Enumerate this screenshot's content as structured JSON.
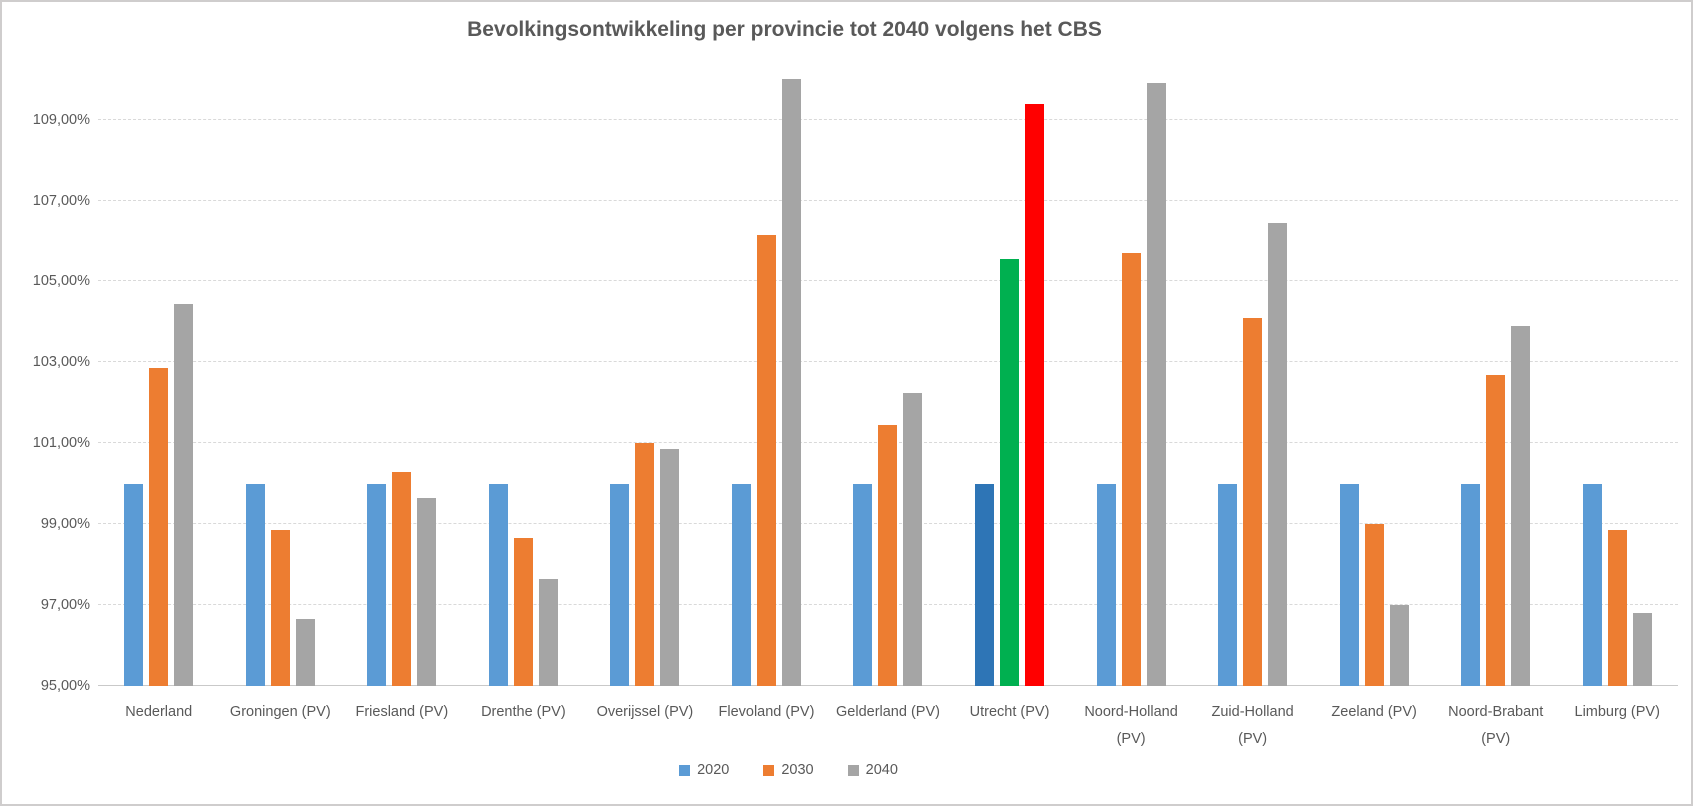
{
  "chart_title": "Bevolkingsontwikkeling per provincie tot 2040 volgens het CBS",
  "colors": {
    "text": "#595959",
    "gridline": "#d9d9d9",
    "border": "#cfcdcd",
    "background": "#ffffff"
  },
  "chart_data": {
    "type": "bar",
    "title": "Bevolkingsontwikkeling per provincie tot 2040 volgens het CBS",
    "categories": [
      "Nederland",
      "Groningen (PV)",
      "Friesland (PV)",
      "Drenthe (PV)",
      "Overijssel (PV)",
      "Flevoland (PV)",
      "Gelderland (PV)",
      "Utrecht (PV)",
      "Noord-Holland (PV)",
      "Zuid-Holland (PV)",
      "Zeeland (PV)",
      "Noord-Brabant (PV)",
      "Limburg (PV)"
    ],
    "two_line_categories": [
      "Noord-Holland (PV)",
      "Zuid-Holland (PV)",
      "Noord-Brabant (PV)"
    ],
    "series": [
      {
        "name": "2020",
        "color": "#5B9BD5",
        "values": [
          100,
          100,
          100,
          100,
          100,
          100,
          100,
          100,
          100,
          100,
          100,
          100,
          100
        ]
      },
      {
        "name": "2030",
        "color": "#ED7D31",
        "values": [
          102.85,
          98.85,
          100.3,
          98.65,
          101.0,
          106.15,
          101.45,
          105.55,
          105.7,
          104.1,
          99.0,
          102.7,
          98.85
        ]
      },
      {
        "name": "2040",
        "color": "#A5A5A5",
        "values": [
          104.45,
          96.65,
          99.65,
          97.65,
          100.85,
          110.0,
          102.25,
          109.4,
          109.9,
          106.45,
          97.0,
          103.9,
          96.8
        ]
      }
    ],
    "highlight": {
      "category": "Utrecht (PV)",
      "colors": {
        "2020": "#2E75B6",
        "2030": "#00B050",
        "2040": "#FF0000"
      }
    },
    "ylim": [
      95,
      110.5
    ],
    "ytick_values": [
      95,
      97,
      99,
      101,
      103,
      105,
      107,
      109
    ],
    "ytick_labels": [
      "95,00%",
      "97,00%",
      "99,00%",
      "101,00%",
      "103,00%",
      "105,00%",
      "107,00%",
      "109,00%"
    ],
    "ytick_format": "percent-comma-2dec",
    "grid": "horizontal-dashed",
    "legend_position": "bottom",
    "xlabel": "",
    "ylabel": ""
  }
}
